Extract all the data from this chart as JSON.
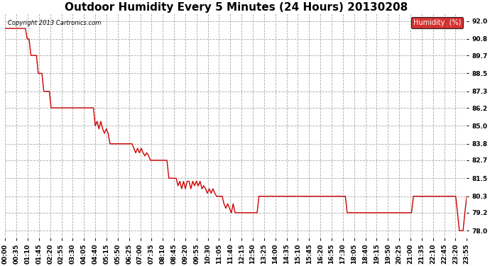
{
  "title": "Outdoor Humidity Every 5 Minutes (24 Hours) 20130208",
  "copyright_text": "Copyright 2013 Cartronics.com",
  "legend_label": "Humidity  (%)",
  "legend_bg": "#cc0000",
  "legend_text_color": "#ffffff",
  "line_color": "#cc0000",
  "line_width": 1.0,
  "bg_color": "#ffffff",
  "grid_color": "#aaaaaa",
  "grid_style": "--",
  "ylim": [
    77.5,
    92.5
  ],
  "yticks": [
    78.0,
    79.2,
    80.3,
    81.5,
    82.7,
    83.8,
    85.0,
    86.2,
    87.3,
    88.5,
    89.7,
    90.8,
    92.0
  ],
  "title_fontsize": 11,
  "tick_fontsize": 6.5,
  "humidity_values": [
    91.5,
    91.5,
    91.5,
    91.5,
    91.5,
    91.5,
    91.5,
    91.5,
    91.5,
    91.5,
    91.5,
    91.5,
    90.8,
    90.8,
    89.7,
    89.7,
    89.7,
    89.7,
    88.5,
    88.5,
    88.5,
    87.3,
    87.3,
    87.3,
    87.3,
    86.2,
    86.2,
    86.2,
    86.2,
    86.2,
    86.2,
    86.2,
    86.2,
    86.2,
    86.2,
    86.2,
    86.2,
    86.2,
    86.2,
    86.2,
    86.2,
    86.2,
    86.2,
    86.2,
    86.2,
    86.2,
    86.2,
    86.2,
    86.2,
    85.0,
    85.3,
    84.8,
    85.3,
    84.8,
    84.5,
    84.8,
    84.5,
    83.8,
    83.8,
    83.8,
    83.8,
    83.8,
    83.8,
    83.8,
    83.8,
    83.8,
    83.8,
    83.8,
    83.8,
    83.8,
    83.5,
    83.2,
    83.5,
    83.2,
    83.5,
    83.2,
    83.0,
    83.2,
    83.0,
    82.7,
    82.7,
    82.7,
    82.7,
    82.7,
    82.7,
    82.7,
    82.7,
    82.7,
    82.7,
    81.5,
    81.5,
    81.5,
    81.5,
    81.5,
    81.0,
    81.3,
    80.8,
    81.3,
    80.8,
    81.3,
    81.3,
    80.8,
    81.3,
    81.0,
    81.3,
    81.0,
    81.3,
    80.8,
    81.0,
    80.8,
    80.5,
    80.8,
    80.5,
    80.8,
    80.5,
    80.3,
    80.3,
    80.3,
    80.3,
    79.8,
    79.5,
    79.8,
    79.5,
    79.2,
    79.8,
    79.2,
    79.2,
    79.2,
    79.2,
    79.2,
    79.2,
    79.2,
    79.2,
    79.2,
    79.2,
    79.2,
    79.2,
    79.2,
    80.3,
    80.3,
    80.3,
    80.3,
    80.3,
    80.3,
    80.3,
    80.3,
    80.3,
    80.3,
    80.3,
    80.3,
    80.3,
    80.3,
    80.3,
    80.3,
    80.3,
    80.3,
    80.3,
    80.3,
    80.3,
    80.3,
    80.3,
    80.3,
    80.3,
    80.3,
    80.3,
    80.3,
    80.3,
    80.3,
    80.3,
    80.3,
    80.3,
    80.3,
    80.3,
    80.3,
    80.3,
    80.3,
    80.3,
    80.3,
    80.3,
    80.3,
    80.3,
    80.3,
    80.3,
    80.3,
    80.3,
    80.3,
    79.2,
    79.2,
    79.2,
    79.2,
    79.2,
    79.2,
    79.2,
    79.2,
    79.2,
    79.2,
    79.2,
    79.2,
    79.2,
    79.2,
    79.2,
    79.2,
    79.2,
    79.2,
    79.2,
    79.2,
    79.2,
    79.2,
    79.2,
    79.2,
    79.2,
    79.2,
    79.2,
    79.2,
    79.2,
    79.2,
    79.2,
    79.2,
    79.2,
    79.2,
    79.2,
    79.2,
    80.3,
    80.3,
    80.3,
    80.3,
    80.3,
    80.3,
    80.3,
    80.3,
    80.3,
    80.3,
    80.3,
    80.3,
    80.3,
    80.3,
    80.3,
    80.3,
    80.3,
    80.3,
    80.3,
    80.3,
    80.3,
    80.3,
    80.3,
    80.3,
    79.2,
    78.0,
    78.0,
    78.0,
    79.2,
    80.3
  ],
  "x_tick_labels": [
    "00:00",
    "00:35",
    "01:10",
    "01:45",
    "02:20",
    "02:55",
    "03:30",
    "04:05",
    "04:40",
    "05:15",
    "05:50",
    "06:25",
    "07:00",
    "07:35",
    "08:10",
    "08:45",
    "09:20",
    "09:55",
    "10:30",
    "11:05",
    "11:40",
    "12:15",
    "12:50",
    "13:25",
    "14:00",
    "14:35",
    "15:10",
    "15:45",
    "16:20",
    "16:55",
    "17:30",
    "18:05",
    "18:40",
    "19:15",
    "19:50",
    "20:25",
    "21:00",
    "21:35",
    "22:10",
    "22:45",
    "23:20",
    "23:55"
  ]
}
